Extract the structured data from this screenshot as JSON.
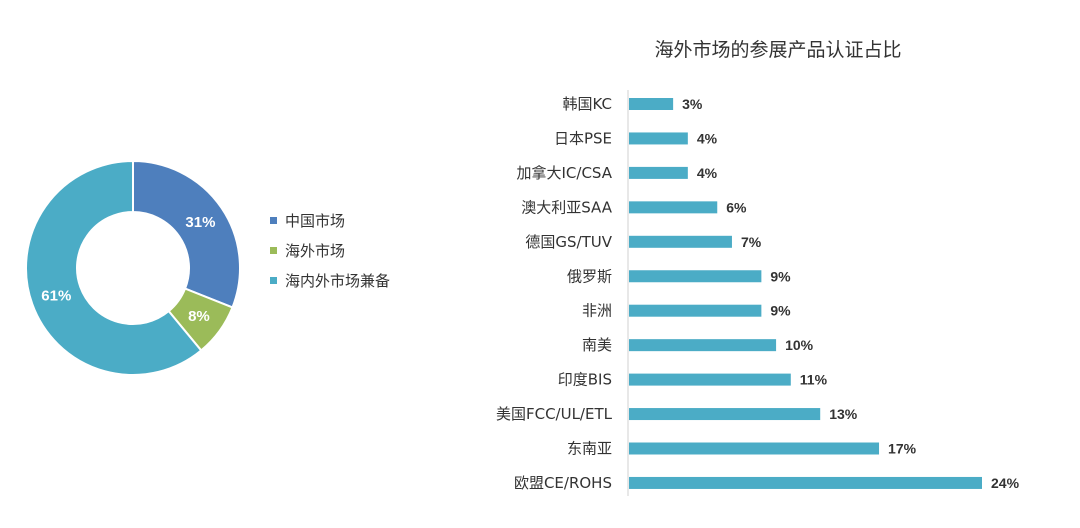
{
  "chart_data": [
    {
      "type": "pie",
      "style": "donut",
      "title": "",
      "labels": [
        "中国市场",
        "海外市场",
        "海内外市场兼备"
      ],
      "values": [
        31,
        8,
        61
      ],
      "value_labels": [
        "31%",
        "8%",
        "61%"
      ],
      "colors": [
        "#4e7fbd",
        "#9bbb59",
        "#4bacc6"
      ],
      "legend_position": "right"
    },
    {
      "type": "bar",
      "orientation": "horizontal",
      "title": "海外市场的参展产品认证占比",
      "categories": [
        "韩国KC",
        "日本PSE",
        "加拿大IC/CSA",
        "澳大利亚SAA",
        "德国GS/TUV",
        "俄罗斯",
        "非洲",
        "南美",
        "印度BIS",
        "美国FCC/UL/ETL",
        "东南亚",
        "欧盟CE/ROHS"
      ],
      "values": [
        3,
        4,
        4,
        6,
        7,
        9,
        9,
        10,
        11,
        13,
        17,
        24
      ],
      "value_labels": [
        "3%",
        "4%",
        "4%",
        "6%",
        "7%",
        "9%",
        "9%",
        "10%",
        "11%",
        "13%",
        "17%",
        "24%"
      ],
      "unit": "%",
      "color": "#4bacc6",
      "xlim": [
        0,
        24
      ],
      "grid": false
    }
  ]
}
